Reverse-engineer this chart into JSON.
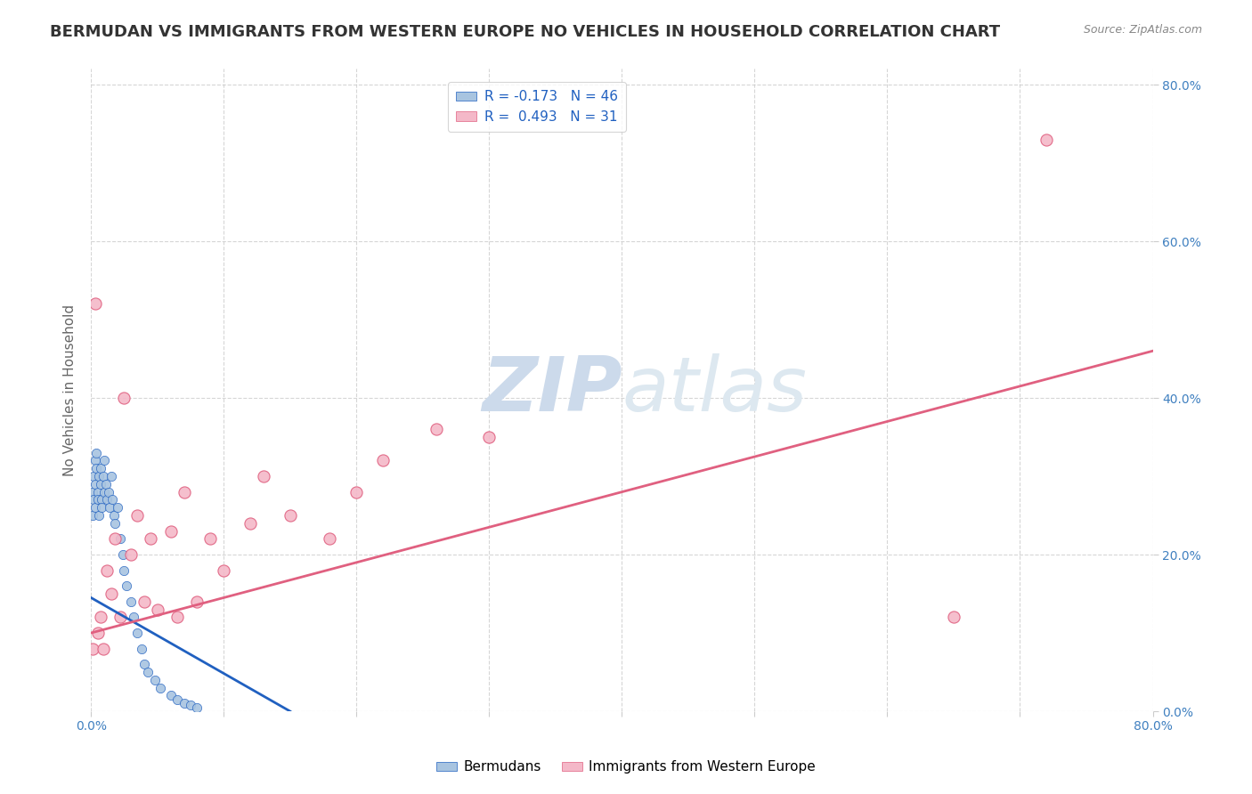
{
  "title": "BERMUDAN VS IMMIGRANTS FROM WESTERN EUROPE NO VEHICLES IN HOUSEHOLD CORRELATION CHART",
  "source_text": "Source: ZipAtlas.com",
  "ylabel": "No Vehicles in Household",
  "x_ticks": [
    0.0,
    0.1,
    0.2,
    0.3,
    0.4,
    0.5,
    0.6,
    0.7,
    0.8
  ],
  "y_ticks_right": [
    0.0,
    0.2,
    0.4,
    0.6,
    0.8
  ],
  "y_tick_labels_right": [
    "0.0%",
    "20.0%",
    "40.0%",
    "60.0%",
    "80.0%"
  ],
  "blue_R": -0.173,
  "blue_N": 46,
  "pink_R": 0.493,
  "pink_N": 31,
  "legend_label_blue": "Bermudans",
  "legend_label_pink": "Immigrants from Western Europe",
  "blue_scatter_x": [
    0.001,
    0.001,
    0.002,
    0.002,
    0.003,
    0.003,
    0.003,
    0.004,
    0.004,
    0.005,
    0.005,
    0.006,
    0.006,
    0.007,
    0.007,
    0.008,
    0.008,
    0.009,
    0.01,
    0.01,
    0.011,
    0.012,
    0.013,
    0.014,
    0.015,
    0.016,
    0.017,
    0.018,
    0.02,
    0.022,
    0.024,
    0.025,
    0.027,
    0.03,
    0.032,
    0.035,
    0.038,
    0.04,
    0.043,
    0.048,
    0.052,
    0.06,
    0.065,
    0.07,
    0.075,
    0.08
  ],
  "blue_scatter_y": [
    0.28,
    0.25,
    0.3,
    0.27,
    0.32,
    0.29,
    0.26,
    0.31,
    0.33,
    0.28,
    0.27,
    0.3,
    0.25,
    0.29,
    0.31,
    0.27,
    0.26,
    0.3,
    0.28,
    0.32,
    0.29,
    0.27,
    0.28,
    0.26,
    0.3,
    0.27,
    0.25,
    0.24,
    0.26,
    0.22,
    0.2,
    0.18,
    0.16,
    0.14,
    0.12,
    0.1,
    0.08,
    0.06,
    0.05,
    0.04,
    0.03,
    0.02,
    0.015,
    0.01,
    0.008,
    0.005
  ],
  "pink_scatter_x": [
    0.001,
    0.003,
    0.005,
    0.007,
    0.009,
    0.012,
    0.015,
    0.018,
    0.022,
    0.025,
    0.03,
    0.035,
    0.04,
    0.045,
    0.05,
    0.06,
    0.065,
    0.07,
    0.08,
    0.09,
    0.1,
    0.12,
    0.13,
    0.15,
    0.18,
    0.2,
    0.22,
    0.26,
    0.3,
    0.65,
    0.72
  ],
  "pink_scatter_y": [
    0.08,
    0.52,
    0.1,
    0.12,
    0.08,
    0.18,
    0.15,
    0.22,
    0.12,
    0.4,
    0.2,
    0.25,
    0.14,
    0.22,
    0.13,
    0.23,
    0.12,
    0.28,
    0.14,
    0.22,
    0.18,
    0.24,
    0.3,
    0.25,
    0.22,
    0.28,
    0.32,
    0.36,
    0.35,
    0.12,
    0.73
  ],
  "blue_line_x": [
    0.0,
    0.15
  ],
  "blue_line_y": [
    0.145,
    0.0
  ],
  "pink_line_x": [
    0.0,
    0.8
  ],
  "pink_line_y": [
    0.1,
    0.46
  ],
  "watermark_zip": "ZIP",
  "watermark_atlas": "atlas",
  "bg_color": "#ffffff",
  "blue_color": "#a8c4e0",
  "blue_line_color": "#2060c0",
  "pink_color": "#f4b8c8",
  "pink_line_color": "#e06080",
  "title_color": "#333333",
  "axis_label_color": "#4080c0",
  "watermark_color": "#ccdaeb",
  "grid_color": "#cccccc"
}
